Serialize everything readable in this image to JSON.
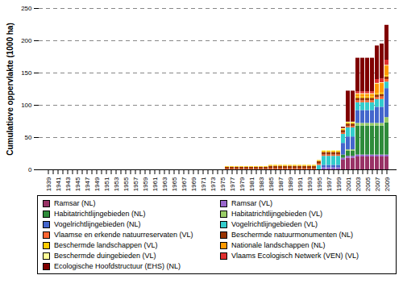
{
  "chart_data": {
    "type": "bar",
    "stacked": true,
    "y_label": "Cumulatieve oppervlakte (1000 ha)",
    "categories": [
      "1939",
      null,
      "1941",
      null,
      "1943",
      null,
      "1945",
      null,
      "1947",
      null,
      "1949",
      null,
      "1951",
      null,
      "1953",
      null,
      "1955",
      null,
      "1957",
      null,
      "1959",
      null,
      "1961",
      null,
      "1963",
      null,
      "1965",
      null,
      "1967",
      null,
      "1969",
      null,
      "1971",
      null,
      "1973",
      null,
      "1975",
      null,
      "1977",
      null,
      "1979",
      null,
      "1981",
      null,
      "1983",
      null,
      "1985",
      null,
      "1987",
      null,
      "1989",
      null,
      "1991",
      null,
      "1993",
      null,
      "1995",
      null,
      "1997",
      null,
      "1999",
      null,
      "2001",
      null,
      "2003",
      null,
      "2005",
      null,
      "2007",
      null,
      "2009"
    ],
    "ylim": [
      0,
      250
    ],
    "yticks": [
      0,
      50,
      100,
      150,
      200,
      250
    ],
    "grid": true,
    "legend": "bottom",
    "series": [
      {
        "name": "Ramsar (NL)",
        "color": "#993366",
        "values": [
          0,
          0,
          0,
          0,
          0,
          0,
          0,
          0,
          0,
          0,
          0,
          0,
          0,
          0,
          0,
          0,
          0,
          0,
          0,
          0,
          0,
          0,
          0,
          0,
          0,
          0,
          0,
          0,
          0,
          0,
          0,
          0,
          0,
          0,
          0,
          0,
          0,
          0,
          0,
          0,
          0,
          0,
          0,
          0,
          0,
          0,
          0,
          0,
          0,
          0,
          0,
          0,
          0,
          0,
          0,
          0,
          0,
          0,
          0,
          0,
          0,
          15,
          18,
          18,
          20,
          20,
          20,
          20,
          20,
          20,
          20
        ]
      },
      {
        "name": "Ramsar (VL)",
        "color": "#9966cc",
        "values": [
          0,
          0,
          0,
          0,
          0,
          0,
          0,
          0,
          0,
          0,
          0,
          0,
          0,
          0,
          0,
          0,
          0,
          0,
          0,
          0,
          0,
          0,
          0,
          0,
          0,
          0,
          0,
          0,
          0,
          0,
          0,
          0,
          0,
          0,
          0,
          0,
          0,
          0,
          0,
          0,
          0,
          0,
          0,
          0,
          0,
          0,
          0,
          0,
          0,
          0,
          0,
          0,
          0,
          0,
          0,
          0,
          0,
          3,
          3,
          3,
          3,
          3,
          3,
          3,
          3,
          3,
          3,
          3,
          3,
          3,
          3
        ]
      },
      {
        "name": "Habitatrichtlijngebieden (NL)",
        "color": "#2e8b3a",
        "values": [
          0,
          0,
          0,
          0,
          0,
          0,
          0,
          0,
          0,
          0,
          0,
          0,
          0,
          0,
          0,
          0,
          0,
          0,
          0,
          0,
          0,
          0,
          0,
          0,
          0,
          0,
          0,
          0,
          0,
          0,
          0,
          0,
          0,
          0,
          0,
          0,
          0,
          0,
          0,
          0,
          0,
          0,
          0,
          0,
          0,
          0,
          0,
          0,
          0,
          0,
          0,
          0,
          0,
          0,
          0,
          0,
          0,
          0,
          0,
          0,
          0,
          5,
          8,
          8,
          45,
          45,
          45,
          45,
          45,
          45,
          50
        ]
      },
      {
        "name": "Habitatrichtlijngebieden (VL)",
        "color": "#99cc66",
        "values": [
          0,
          0,
          0,
          0,
          0,
          0,
          0,
          0,
          0,
          0,
          0,
          0,
          0,
          0,
          0,
          0,
          0,
          0,
          0,
          0,
          0,
          0,
          0,
          0,
          0,
          0,
          0,
          0,
          0,
          0,
          0,
          0,
          0,
          0,
          0,
          0,
          0,
          0,
          0,
          0,
          0,
          0,
          0,
          0,
          0,
          0,
          0,
          0,
          0,
          0,
          0,
          0,
          0,
          0,
          0,
          0,
          0,
          0,
          0,
          0,
          0,
          0,
          2,
          2,
          4,
          4,
          4,
          4,
          4,
          4,
          8
        ]
      },
      {
        "name": "Vogelrichtlijngebieden (NL)",
        "color": "#4466cc",
        "values": [
          0,
          0,
          0,
          0,
          0,
          0,
          0,
          0,
          0,
          0,
          0,
          0,
          0,
          0,
          0,
          0,
          0,
          0,
          0,
          0,
          0,
          0,
          0,
          0,
          0,
          0,
          0,
          0,
          0,
          0,
          0,
          0,
          0,
          0,
          0,
          0,
          0,
          0,
          0,
          0,
          0,
          0,
          0,
          0,
          0,
          0,
          0,
          0,
          0,
          0,
          0,
          0,
          0,
          0,
          0,
          0,
          0,
          4,
          4,
          4,
          4,
          18,
          20,
          20,
          20,
          20,
          20,
          20,
          25,
          25,
          45
        ]
      },
      {
        "name": "Vogelrichtlijngebieden (VL)",
        "color": "#33cccc",
        "values": [
          0,
          0,
          0,
          0,
          0,
          0,
          0,
          0,
          0,
          0,
          0,
          0,
          0,
          0,
          0,
          0,
          0,
          0,
          0,
          0,
          0,
          0,
          0,
          0,
          0,
          0,
          0,
          0,
          0,
          0,
          0,
          0,
          0,
          0,
          0,
          0,
          0,
          0,
          0,
          0,
          0,
          0,
          0,
          0,
          0,
          0,
          0,
          0,
          0,
          0,
          0,
          0,
          0,
          0,
          0,
          0,
          7,
          14,
          14,
          14,
          14,
          14,
          14,
          14,
          12,
          12,
          12,
          12,
          12,
          12,
          10
        ]
      },
      {
        "name": "Vlaamse en erkende natuurreservaten (VL)",
        "color": "#ff6633",
        "values": [
          0,
          0,
          0,
          0,
          0,
          0,
          0,
          0,
          0,
          0,
          0,
          0,
          0,
          0,
          0,
          0,
          0,
          0,
          0,
          0,
          0,
          0,
          0,
          0,
          0,
          0,
          0,
          0,
          0,
          0,
          0,
          0,
          0,
          0,
          0,
          0,
          0,
          1,
          1,
          1,
          1,
          1,
          1,
          1,
          1,
          1,
          1.5,
          1.5,
          1.5,
          1.5,
          1.5,
          1.5,
          1.5,
          1.5,
          1.5,
          1.5,
          2,
          2,
          2,
          2,
          2,
          2,
          2,
          2,
          3,
          3,
          3,
          3,
          3,
          4,
          4
        ]
      },
      {
        "name": "Beschermde natuurmonumenten (NL)",
        "color": "#993300",
        "values": [
          0,
          0,
          0,
          0,
          0,
          0,
          0,
          0,
          0,
          0,
          0,
          0,
          0,
          0,
          0,
          0,
          0,
          0,
          0,
          0,
          0,
          0,
          0,
          0,
          0,
          0,
          0,
          0,
          0,
          0,
          0,
          0,
          0,
          0,
          0,
          0,
          0,
          3,
          3,
          3,
          3,
          3,
          3,
          3,
          3,
          3,
          4,
          4,
          4,
          4,
          4,
          4,
          4,
          4,
          4,
          4,
          4,
          4,
          4,
          4,
          4,
          4,
          4,
          4,
          4,
          4,
          4,
          4,
          4,
          4,
          4
        ]
      },
      {
        "name": "Beschermde landschappen (VL)",
        "color": "#ffcc00",
        "values": [
          0,
          0,
          0,
          0,
          0,
          0,
          0,
          0,
          0,
          0,
          0,
          0,
          0,
          0,
          0,
          0,
          0,
          0,
          0,
          0,
          0,
          0,
          0,
          0,
          0,
          0,
          0,
          0,
          0,
          0,
          0,
          0,
          0,
          0,
          0,
          0,
          0,
          1,
          1,
          1,
          1,
          1,
          1,
          1,
          1,
          1,
          1.5,
          1.5,
          1.5,
          1.5,
          1.5,
          1.5,
          1.5,
          1.5,
          1.5,
          1.5,
          1.5,
          2,
          2,
          2,
          2,
          2,
          2,
          2,
          2,
          2,
          2,
          2,
          2,
          2,
          2
        ]
      },
      {
        "name": "Nationale landschappen (NL)",
        "color": "#ff9900",
        "values": [
          0,
          0,
          0,
          0,
          0,
          0,
          0,
          0,
          0,
          0,
          0,
          0,
          0,
          0,
          0,
          0,
          0,
          0,
          0,
          0,
          0,
          0,
          0,
          0,
          0,
          0,
          0,
          0,
          0,
          0,
          0,
          0,
          0,
          0,
          0,
          0,
          0,
          0,
          0,
          0,
          0,
          0,
          0,
          0,
          0,
          0,
          0,
          0,
          0,
          0,
          0,
          0,
          0,
          0,
          0,
          0,
          0,
          0,
          0,
          0,
          0,
          0,
          0,
          0,
          4,
          4,
          4,
          4,
          15,
          15,
          15
        ]
      },
      {
        "name": "Beschermde duingebieden (VL)",
        "color": "#ffff99",
        "values": [
          0,
          0,
          0,
          0,
          0,
          0,
          0,
          0,
          0,
          0,
          0,
          0,
          0,
          0,
          0,
          0,
          0,
          0,
          0,
          0,
          0,
          0,
          0,
          0,
          0,
          0,
          0,
          0,
          0,
          0,
          0,
          0,
          0,
          0,
          0,
          0,
          0,
          0,
          0,
          0,
          0,
          0,
          0,
          0,
          0,
          0,
          0,
          0,
          0,
          0,
          0,
          0,
          0,
          0,
          0,
          0,
          0,
          1,
          1,
          1,
          1,
          1,
          1,
          1,
          1,
          1,
          1,
          1,
          1,
          1,
          1
        ]
      },
      {
        "name": "Vlaams Ecologisch Netwerk (VEN) (VL)",
        "color": "#e03030",
        "values": [
          0,
          0,
          0,
          0,
          0,
          0,
          0,
          0,
          0,
          0,
          0,
          0,
          0,
          0,
          0,
          0,
          0,
          0,
          0,
          0,
          0,
          0,
          0,
          0,
          0,
          0,
          0,
          0,
          0,
          0,
          0,
          0,
          0,
          0,
          0,
          0,
          0,
          0,
          0,
          0,
          0,
          0,
          0,
          0,
          0,
          0,
          0,
          0,
          0,
          0,
          0,
          0,
          0,
          0,
          0,
          0,
          0,
          0,
          0,
          0,
          0,
          0,
          0,
          0,
          3,
          3,
          3,
          3,
          6,
          6,
          8
        ]
      },
      {
        "name": "Ecologische Hoofdstructuur (EHS) (NL)",
        "color": "#800000",
        "values": [
          0,
          0,
          0,
          0,
          0,
          0,
          0,
          0,
          0,
          0,
          0,
          0,
          0,
          0,
          0,
          0,
          0,
          0,
          0,
          0,
          0,
          0,
          0,
          0,
          0,
          0,
          0,
          0,
          0,
          0,
          0,
          0,
          0,
          0,
          0,
          0,
          0,
          0,
          0,
          0,
          0,
          0,
          0,
          0,
          0,
          0,
          0,
          0,
          0,
          0,
          0,
          0,
          0,
          0,
          0,
          0,
          0,
          0,
          0,
          0,
          0,
          2,
          48,
          48,
          52,
          52,
          52,
          52,
          52,
          54,
          54
        ]
      }
    ]
  }
}
